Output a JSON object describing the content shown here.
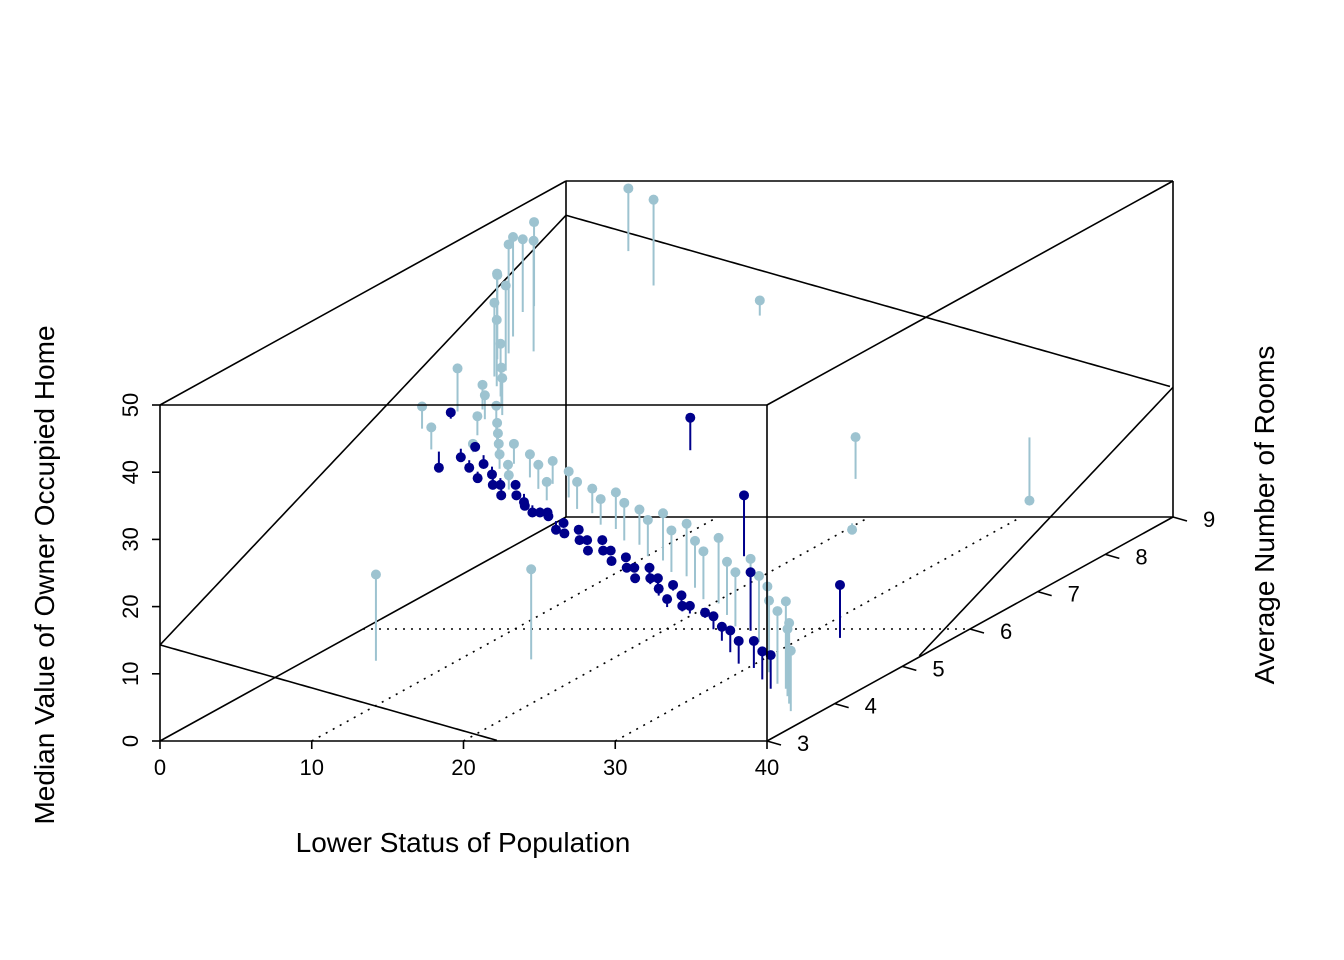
{
  "chart_data": {
    "type": "scatter3d",
    "title": "",
    "xlabel": "Lower Status of Population",
    "ylabel": "Average Number of Rooms",
    "zlabel": "Median Value of Owner Occupied Home",
    "xlim": [
      0,
      40
    ],
    "ylim": [
      3,
      9
    ],
    "zlim": [
      0,
      50
    ],
    "x_ticks": [
      "0",
      "10",
      "20",
      "30",
      "40"
    ],
    "y_ticks": [
      "3",
      "4",
      "5",
      "6",
      "7",
      "8",
      "9"
    ],
    "z_ticks": [
      "0",
      "10",
      "20",
      "30",
      "40",
      "50"
    ],
    "grid": true,
    "vertical_drop_lines": true,
    "regression_plane": true,
    "colors": {
      "above_plane": "#9DC3D0",
      "below_plane": "#00008B"
    },
    "series": [
      {
        "group": "above_plane",
        "points": [
          [
            1.7,
            7.6,
            44
          ],
          [
            2.5,
            7.8,
            48
          ],
          [
            3.2,
            7.5,
            50
          ],
          [
            3.5,
            7.2,
            46
          ],
          [
            4.2,
            7.0,
            43
          ],
          [
            4.8,
            6.9,
            41
          ],
          [
            3.8,
            7.3,
            50
          ],
          [
            5.0,
            7.4,
            50
          ],
          [
            2.8,
            7.9,
            50
          ],
          [
            4.5,
            7.1,
            45
          ],
          [
            5.5,
            6.8,
            38
          ],
          [
            6.0,
            6.7,
            35
          ],
          [
            5.2,
            6.6,
            33
          ],
          [
            4.0,
            6.5,
            36
          ],
          [
            6.5,
            6.6,
            34
          ],
          [
            7.0,
            6.4,
            31
          ],
          [
            6.2,
            6.3,
            30
          ],
          [
            5.8,
            6.5,
            32
          ],
          [
            7.5,
            6.3,
            29
          ],
          [
            8.0,
            6.2,
            28
          ],
          [
            3.0,
            6.2,
            32
          ],
          [
            4.5,
            6.0,
            30
          ],
          [
            6.8,
            6.1,
            27
          ],
          [
            8.5,
            6.1,
            27
          ],
          [
            9.0,
            6.0,
            26
          ],
          [
            10.0,
            5.9,
            25
          ],
          [
            9.5,
            6.1,
            27
          ],
          [
            11.0,
            6.0,
            26
          ],
          [
            12.0,
            5.9,
            25
          ],
          [
            10.5,
            5.8,
            24
          ],
          [
            13.0,
            5.8,
            23
          ],
          [
            12.5,
            6.0,
            25
          ],
          [
            14.0,
            5.9,
            24
          ],
          [
            15.0,
            5.8,
            23
          ],
          [
            16.0,
            5.8,
            22
          ],
          [
            17.0,
            5.7,
            21
          ],
          [
            18.0,
            5.7,
            22
          ],
          [
            19.0,
            5.6,
            21
          ],
          [
            20.0,
            5.6,
            20
          ],
          [
            21.0,
            5.5,
            19
          ],
          [
            22.0,
            5.5,
            20
          ],
          [
            23.0,
            5.4,
            18
          ],
          [
            24.0,
            5.4,
            19
          ],
          [
            25.0,
            5.3,
            17
          ],
          [
            26.0,
            5.2,
            16
          ],
          [
            27.0,
            5.2,
            18
          ],
          [
            28.0,
            5.1,
            15
          ],
          [
            29.0,
            5.0,
            14
          ],
          [
            30.0,
            5.0,
            16
          ],
          [
            31.0,
            4.9,
            14
          ],
          [
            32.0,
            4.8,
            13
          ],
          [
            33.0,
            4.6,
            12
          ],
          [
            34.0,
            4.5,
            11
          ],
          [
            35.0,
            4.4,
            13
          ],
          [
            36.0,
            4.2,
            10
          ],
          [
            37.0,
            4.0,
            12
          ],
          [
            38.0,
            3.8,
            9
          ],
          [
            30.0,
            6.5,
            12
          ],
          [
            35.0,
            8.0,
            8
          ],
          [
            12.0,
            3.5,
            22
          ],
          [
            20.0,
            4.0,
            20
          ],
          [
            15.0,
            8.5,
            35
          ],
          [
            5.0,
            8.8,
            50
          ],
          [
            8.0,
            8.5,
            50
          ],
          [
            28.0,
            7.0,
            23
          ]
        ]
      },
      {
        "group": "below_plane",
        "points": [
          [
            5.0,
            6.0,
            24
          ],
          [
            6.0,
            6.1,
            25
          ],
          [
            7.0,
            6.0,
            24
          ],
          [
            8.0,
            5.9,
            23
          ],
          [
            9.0,
            5.9,
            22
          ],
          [
            10.0,
            5.8,
            21
          ],
          [
            11.0,
            5.8,
            21
          ],
          [
            12.0,
            5.7,
            20
          ],
          [
            13.0,
            5.7,
            19
          ],
          [
            14.0,
            5.6,
            19
          ],
          [
            15.0,
            5.6,
            18
          ],
          [
            16.0,
            5.6,
            17
          ],
          [
            17.0,
            5.5,
            16
          ],
          [
            18.0,
            5.5,
            16
          ],
          [
            19.0,
            5.4,
            15
          ],
          [
            20.0,
            5.4,
            14
          ],
          [
            21.0,
            5.3,
            13
          ],
          [
            22.0,
            5.3,
            13
          ],
          [
            23.0,
            5.2,
            12
          ],
          [
            24.0,
            5.2,
            11
          ],
          [
            25.0,
            5.1,
            10
          ],
          [
            26.0,
            5.0,
            9
          ],
          [
            27.0,
            5.0,
            8
          ],
          [
            28.0,
            4.9,
            8
          ],
          [
            29.0,
            4.8,
            7
          ],
          [
            30.0,
            4.7,
            7
          ],
          [
            31.0,
            4.6,
            6
          ],
          [
            32.0,
            4.6,
            6
          ],
          [
            33.0,
            4.5,
            5
          ],
          [
            34.0,
            4.4,
            5
          ],
          [
            6.5,
            6.2,
            26
          ],
          [
            7.5,
            6.1,
            24
          ],
          [
            8.5,
            6.0,
            23
          ],
          [
            9.5,
            5.9,
            22
          ],
          [
            10.5,
            5.9,
            22
          ],
          [
            11.5,
            5.8,
            20
          ],
          [
            12.5,
            5.7,
            19
          ],
          [
            13.5,
            5.7,
            19
          ],
          [
            14.5,
            5.6,
            17
          ],
          [
            15.5,
            5.5,
            17
          ],
          [
            16.5,
            5.5,
            16
          ],
          [
            17.5,
            5.4,
            15
          ],
          [
            18.5,
            5.4,
            15
          ],
          [
            19.5,
            5.3,
            14
          ],
          [
            20.5,
            5.3,
            13
          ],
          [
            21.5,
            5.2,
            12
          ],
          [
            22.5,
            5.2,
            12
          ],
          [
            23.5,
            5.1,
            11
          ],
          [
            24.5,
            5.0,
            10
          ],
          [
            25.5,
            5.0,
            9
          ],
          [
            4.0,
            6.4,
            30
          ],
          [
            30.0,
            5.0,
            14
          ],
          [
            26.0,
            5.8,
            21
          ],
          [
            18.0,
            6.8,
            27
          ],
          [
            35.0,
            5.2,
            11
          ]
        ]
      }
    ]
  }
}
